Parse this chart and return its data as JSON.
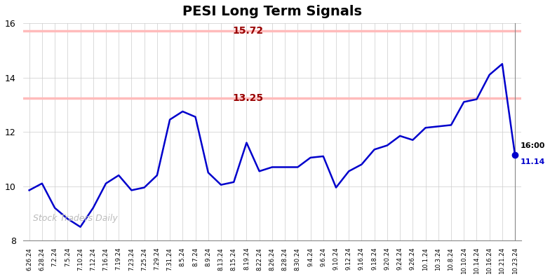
{
  "title": "PESI Long Term Signals",
  "hline1_value": 15.72,
  "hline1_label": "15.72",
  "hline2_value": 13.25,
  "hline2_label": "13.25",
  "hline_color": "#ffbbbb",
  "hline_label_color": "#990000",
  "watermark": "Stock Traders Daily",
  "watermark_color": "#bbbbbb",
  "line_color": "#0000cc",
  "end_label_time": "16:00",
  "end_label_value": "11.14",
  "end_dot_color": "#0000cc",
  "ylim": [
    8,
    16
  ],
  "yticks": [
    8,
    10,
    12,
    14,
    16
  ],
  "x_labels": [
    "6.26.24",
    "6.28.24",
    "7.2.24",
    "7.5.24",
    "7.10.24",
    "7.12.24",
    "7.16.24",
    "7.19.24",
    "7.23.24",
    "7.25.24",
    "7.29.24",
    "7.31.24",
    "8.5.24",
    "8.7.24",
    "8.9.24",
    "8.13.24",
    "8.15.24",
    "8.19.24",
    "8.22.24",
    "8.26.24",
    "8.28.24",
    "8.30.24",
    "9.4.24",
    "9.6.24",
    "9.10.24",
    "9.12.24",
    "9.16.24",
    "9.18.24",
    "9.20.24",
    "9.24.24",
    "9.26.24",
    "10.1.24",
    "10.3.24",
    "10.8.24",
    "10.10.24",
    "10.14.24",
    "10.16.24",
    "10.21.24",
    "10.23.24"
  ],
  "y_values": [
    9.85,
    10.1,
    9.2,
    8.8,
    8.5,
    9.2,
    10.1,
    10.4,
    9.85,
    9.95,
    10.4,
    12.45,
    12.75,
    12.55,
    10.5,
    10.05,
    10.15,
    11.6,
    10.55,
    10.7,
    10.7,
    10.7,
    11.05,
    11.1,
    9.95,
    10.55,
    10.8,
    11.35,
    11.5,
    11.85,
    11.7,
    12.15,
    12.2,
    12.25,
    13.1,
    13.2,
    14.1,
    14.5,
    11.14
  ],
  "background_color": "#ffffff",
  "grid_color": "#cccccc",
  "figsize": [
    7.84,
    3.98
  ],
  "dpi": 100
}
